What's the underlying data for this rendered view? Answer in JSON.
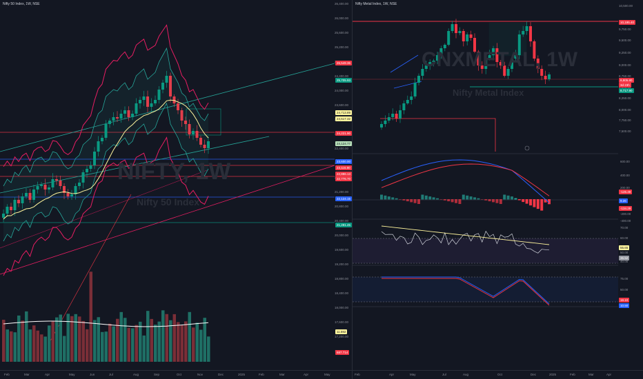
{
  "left": {
    "title": "Nifty 50 Index, 1W, NSE",
    "watermark_main": "NIFTY, 1W",
    "watermark_sub": "Nifty 50 Index",
    "price_axis": [
      "26,400.00",
      "26,000.00",
      "25,600.00",
      "25,200.00",
      "24,800.00",
      "24,400.00",
      "24,000.00",
      "23,600.00",
      "23,200.00",
      "22,800.00",
      "22,400.00",
      "22,000.00",
      "21,600.00",
      "21,200.00",
      "20,800.00",
      "20,400.00",
      "20,000.00",
      "19,600.00",
      "19,200.00",
      "18,800.00",
      "18,400.00",
      "18,000.00",
      "17,600.00",
      "17,200.00",
      "16,800.00"
    ],
    "price_tags": [
      {
        "label": "26,549.36",
        "color": "#f23645"
      },
      {
        "label": "25,705.93",
        "color": "#089981"
      },
      {
        "label": "24,713.89",
        "color": "#fff59d"
      },
      {
        "label": "24,517.32",
        "color": "#fff59d"
      },
      {
        "label": "24,221.90",
        "color": "#f23645"
      },
      {
        "label": "24,124.77",
        "color": "#b7dfb9"
      },
      {
        "label": "23,600.00",
        "color": "#2962ff"
      },
      {
        "label": "23,116.80",
        "color": "#f23645"
      },
      {
        "label": "22,886.13",
        "color": "#f23645"
      },
      {
        "label": "22,776.70",
        "color": "#f23645"
      },
      {
        "label": "22,124.15",
        "color": "#2962ff"
      },
      {
        "label": "21,281.45",
        "color": "#089981"
      },
      {
        "label": "11.592",
        "color": "#fff59d"
      },
      {
        "label": "687.714",
        "color": "#f23645"
      }
    ],
    "time_axis": [
      "Feb",
      "Mar",
      "Apr",
      "May",
      "Jun",
      "Jul",
      "Aug",
      "Sep",
      "Oct",
      "Nov",
      "Dec",
      "2025",
      "Feb",
      "Mar",
      "Apr",
      "May"
    ]
  },
  "right": {
    "title": "Nifty Metal Index, 1W, NSE",
    "watermark_main": "CNXMETAL, 1W",
    "watermark_sub": "Nifty Metal Index",
    "price_axis": [
      "10,500.00",
      "10,000.00",
      "9,750.00",
      "9,500.00",
      "9,250.00",
      "9,000.00",
      "8,750.00",
      "8,500.00",
      "8,250.00",
      "8,000.00",
      "7,750.00",
      "7,500.00"
    ],
    "price_tags": [
      {
        "label": "10,195.40",
        "color": "#f23645"
      },
      {
        "label": "8,805.80",
        "color": "#f23645"
      },
      {
        "label": "3d 23h",
        "color": "#f23645"
      },
      {
        "label": "8,717.90",
        "color": "#089981"
      }
    ],
    "left_axis": [
      "28,800.00",
      "28,000.00",
      "27,600.00",
      "27,200.00",
      "26,800.00",
      "26,400.00",
      "26,000.00",
      "25,600.00",
      "25,200.00",
      "24,800.00",
      "24,400.00",
      "24,000.00",
      "23,600.00",
      "23,200.00",
      "22,800.00",
      "22,400.00",
      "22,000.00",
      "21,600.00",
      "21,200.00",
      "20,800.00",
      "20,400.00",
      "20,000.00",
      "19,600.00",
      "19,200.00",
      "18,800.00",
      "18,400.00",
      "18,000.00",
      "17,600.00",
      "17,200.00",
      "16,800.00"
    ],
    "macd_axis": [
      "600.00",
      "400.00",
      "200.00",
      "0.00",
      "-200.00",
      "-400.00"
    ],
    "macd_tags": [
      {
        "label": "-126.49",
        "color": "#f23645"
      },
      {
        "label": "9.26",
        "color": "#2962ff"
      },
      {
        "label": "-134.29",
        "color": "#f23645"
      }
    ],
    "rsi_axis": [
      "70.00",
      "60.00",
      "50.00",
      "40.00"
    ],
    "rsi_tags": [
      {
        "label": "55.65",
        "color": "#fff59d"
      },
      {
        "label": "36.52",
        "color": "#9598a1"
      }
    ],
    "stoch_axis": [
      "75.00",
      "50.00",
      "25.00"
    ],
    "stoch_tags": [
      {
        "label": "18.10",
        "color": "#f23645"
      },
      {
        "label": "10.50",
        "color": "#2962ff"
      }
    ],
    "time_axis": [
      "Feb",
      "Apr",
      "May",
      "Jul",
      "Aug",
      "Oct",
      "Dec",
      "2025",
      "Feb",
      "Mar",
      "Apr"
    ]
  },
  "colors": {
    "bg": "#131722",
    "up": "#089981",
    "down": "#f23645",
    "sma": "#fff59d",
    "blue": "#2962ff"
  }
}
